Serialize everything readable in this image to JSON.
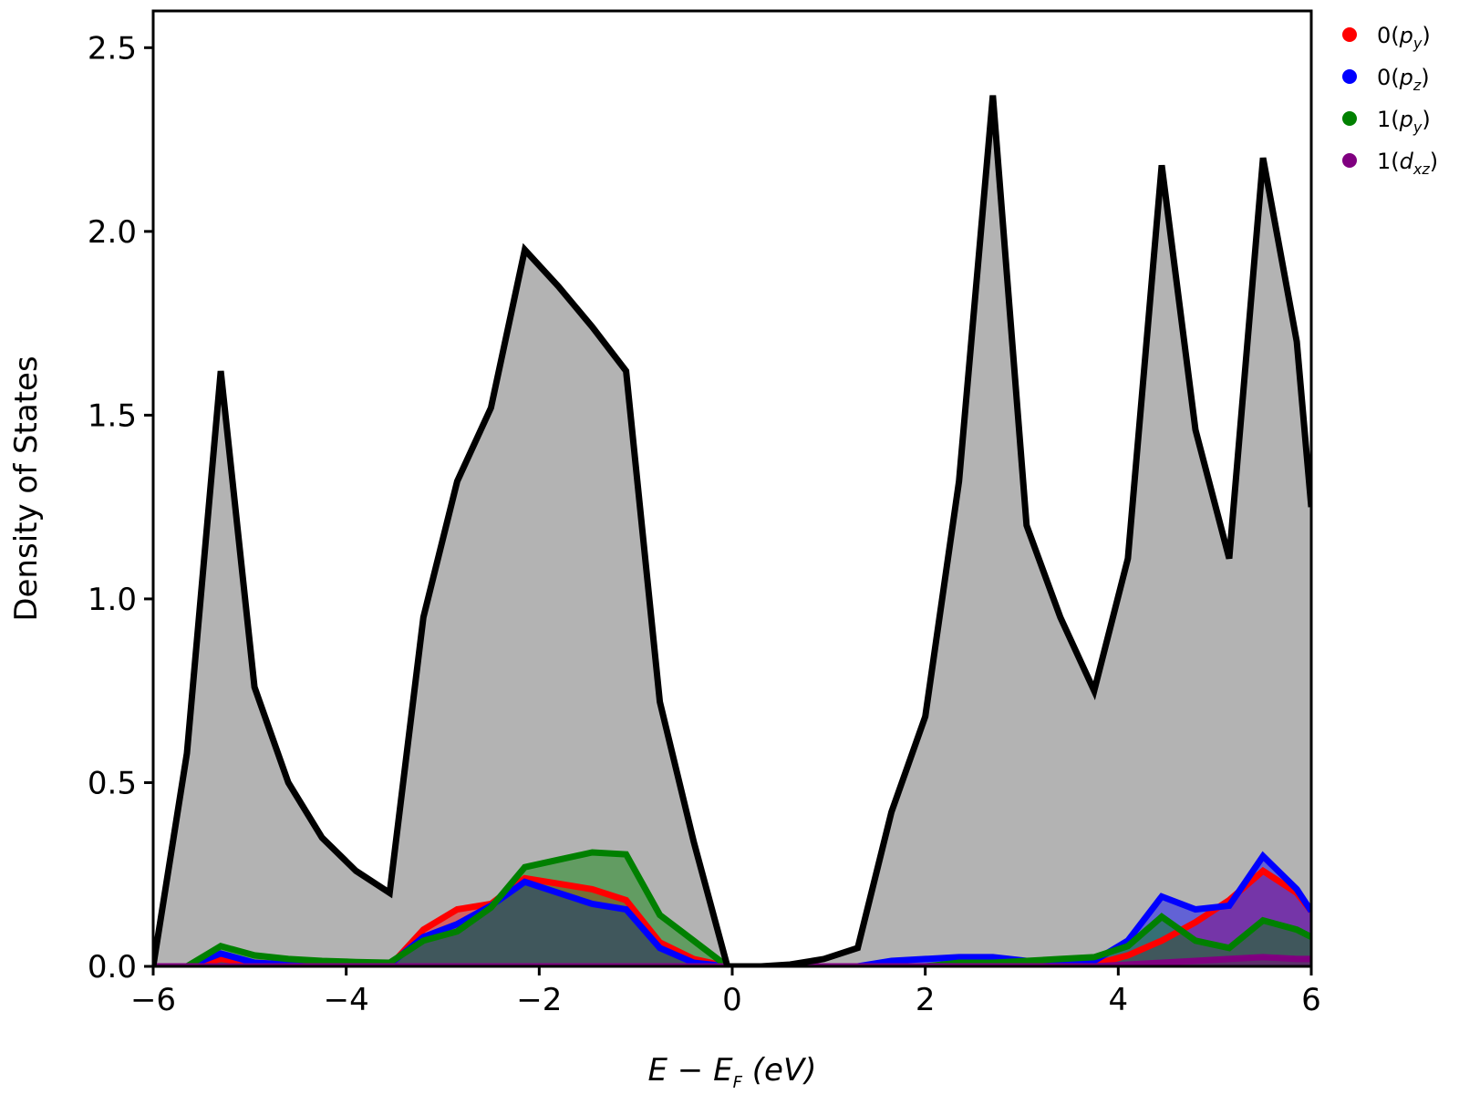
{
  "chart_data": {
    "type": "area",
    "xlabel": "E − E_F (eV)",
    "ylabel": "Density of States",
    "xlim": [
      -6,
      6
    ],
    "ylim": [
      0,
      2.6
    ],
    "xticks": [
      -6,
      -4,
      -2,
      0,
      2,
      4,
      6
    ],
    "yticks": [
      0.0,
      0.5,
      1.0,
      1.5,
      2.0,
      2.5
    ],
    "xtick_labels": [
      "−6",
      "−4",
      "−2",
      "0",
      "2",
      "4",
      "6"
    ],
    "ytick_labels": [
      "0.0",
      "0.5",
      "1.0",
      "1.5",
      "2.0",
      "2.5"
    ],
    "grid": false,
    "legend_position": "outside-top-right",
    "x": [
      -6.0,
      -5.65,
      -5.3,
      -4.95,
      -4.6,
      -4.25,
      -3.9,
      -3.55,
      -3.2,
      -2.85,
      -2.5,
      -2.15,
      -1.8,
      -1.45,
      -1.1,
      -0.75,
      -0.4,
      -0.05,
      0.3,
      0.6,
      0.95,
      1.3,
      1.65,
      2.0,
      2.35,
      2.7,
      3.05,
      3.4,
      3.75,
      4.1,
      4.45,
      4.8,
      5.15,
      5.5,
      5.85,
      6.0
    ],
    "total": {
      "color": "#000000",
      "fill": "#b3b3b3",
      "values": [
        0.0,
        0.58,
        1.62,
        0.76,
        0.5,
        0.35,
        0.26,
        0.2,
        0.95,
        1.32,
        1.52,
        1.95,
        1.85,
        1.74,
        1.62,
        0.72,
        0.34,
        0.0,
        0.0,
        0.005,
        0.02,
        0.05,
        0.42,
        0.68,
        1.32,
        2.37,
        1.2,
        0.95,
        0.75,
        1.11,
        2.18,
        1.46,
        1.11,
        2.2,
        1.7,
        1.25
      ]
    },
    "series": [
      {
        "name": "0(p_y)",
        "label_main": "0(",
        "label_var": "p",
        "label_sub": "y",
        "color": "#ff0000",
        "fill": "rgba(255,0,0,0.45)",
        "values": [
          0.0,
          0.0,
          0.02,
          0.01,
          0.005,
          0.0,
          0.0,
          0.0,
          0.1,
          0.155,
          0.17,
          0.24,
          0.225,
          0.21,
          0.18,
          0.065,
          0.02,
          0.0,
          0.0,
          0.0,
          0.0,
          0.0,
          0.0,
          0.0,
          0.0,
          0.0,
          0.0,
          0.0,
          0.005,
          0.03,
          0.07,
          0.12,
          0.18,
          0.26,
          0.2,
          0.15
        ]
      },
      {
        "name": "0(p_z)",
        "label_main": "0(",
        "label_var": "p",
        "label_sub": "z",
        "color": "#0000ff",
        "fill": "rgba(0,0,255,0.45)",
        "values": [
          0.0,
          0.0,
          0.035,
          0.01,
          0.005,
          0.005,
          0.005,
          0.005,
          0.08,
          0.115,
          0.165,
          0.23,
          0.2,
          0.17,
          0.155,
          0.05,
          0.01,
          0.0,
          0.0,
          0.0,
          0.0,
          0.0,
          0.015,
          0.02,
          0.025,
          0.025,
          0.015,
          0.01,
          0.015,
          0.07,
          0.19,
          0.155,
          0.165,
          0.3,
          0.21,
          0.15
        ]
      },
      {
        "name": "1(p_y)",
        "label_main": "1(",
        "label_var": "p",
        "label_sub": "y",
        "color": "#008000",
        "fill": "rgba(0,128,0,0.45)",
        "values": [
          0.0,
          0.0,
          0.055,
          0.03,
          0.02,
          0.015,
          0.012,
          0.01,
          0.07,
          0.095,
          0.16,
          0.27,
          0.29,
          0.31,
          0.305,
          0.14,
          0.07,
          0.0,
          0.0,
          0.0,
          0.0,
          0.0,
          0.0,
          0.0,
          0.01,
          0.01,
          0.015,
          0.02,
          0.025,
          0.055,
          0.135,
          0.07,
          0.05,
          0.125,
          0.1,
          0.08
        ]
      },
      {
        "name": "1(d_xz)",
        "label_main": "1(",
        "label_var": "d",
        "label_sub": "xz",
        "color": "#800080",
        "fill": "rgba(128,0,128,0.45)",
        "values": [
          0.0,
          0.0,
          0.0,
          0.0,
          0.0,
          0.0,
          0.0,
          0.0,
          0.0,
          0.0,
          0.0,
          0.0,
          0.0,
          0.0,
          0.0,
          0.0,
          0.0,
          0.0,
          0.0,
          0.0,
          0.0,
          0.0,
          0.0,
          0.0,
          0.0,
          0.0,
          0.0,
          0.0,
          0.0,
          0.005,
          0.01,
          0.015,
          0.02,
          0.025,
          0.02,
          0.02
        ]
      }
    ]
  }
}
